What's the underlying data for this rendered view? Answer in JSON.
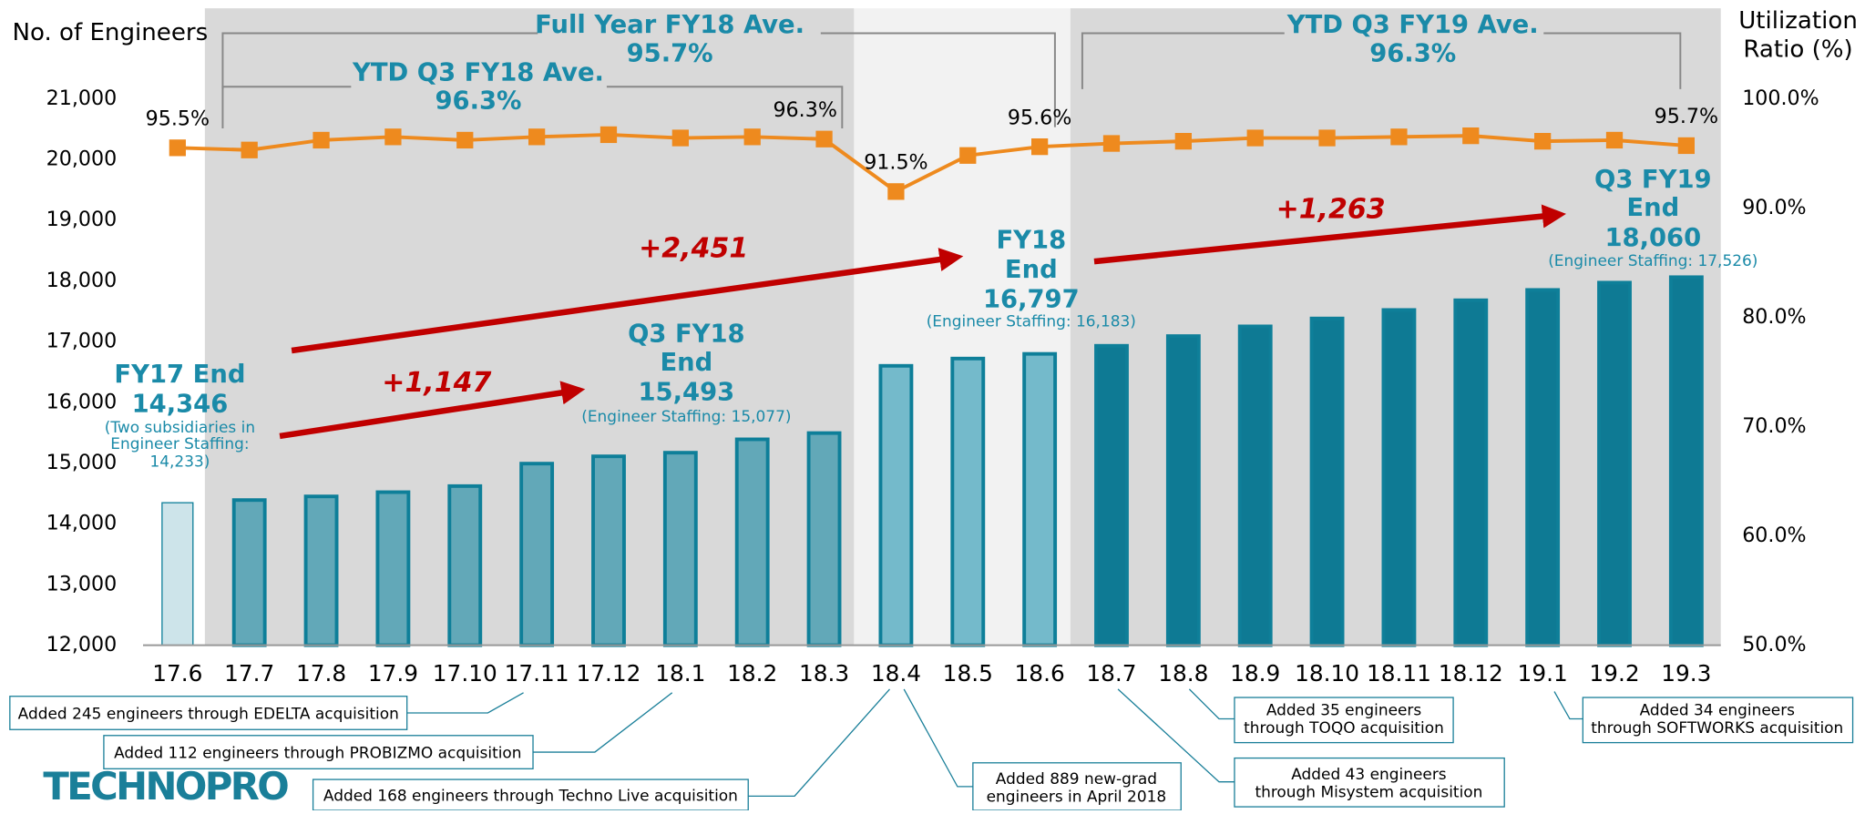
{
  "chart_data": {
    "type": "bar",
    "y_label": "No. of Engineers",
    "y2_label": [
      "Utilization",
      "Ratio (%)"
    ],
    "categories": [
      "17.6",
      "17.7",
      "17.8",
      "17.9",
      "17.10",
      "17.11",
      "17.12",
      "18.1",
      "18.2",
      "18.3",
      "18.4",
      "18.5",
      "18.6",
      "18.7",
      "18.8",
      "18.9",
      "18.10",
      "18.11",
      "18.12",
      "19.1",
      "19.2",
      "19.3"
    ],
    "series": [
      {
        "type": "bar",
        "values": [
          14346,
          14390,
          14450,
          14520,
          14620,
          14990,
          15110,
          15170,
          15390,
          15493,
          16600,
          16720,
          16797,
          16930,
          17090,
          17250,
          17380,
          17520,
          17680,
          17850,
          17970,
          18060
        ],
        "colors": [
          "#cde4ea",
          "#62a8b8",
          "#62a8b8",
          "#62a8b8",
          "#62a8b8",
          "#62a8b8",
          "#62a8b8",
          "#62a8b8",
          "#62a8b8",
          "#62a8b8",
          "#74bacb",
          "#74bacb",
          "#74bacb",
          "#0e7a94",
          "#0e7a94",
          "#0e7a94",
          "#0e7a94",
          "#0e7a94",
          "#0e7a94",
          "#0e7a94",
          "#0e7a94",
          "#0e7a94"
        ],
        "border_color": "#0e7f99"
      },
      {
        "type": "line",
        "axis": "y2",
        "color": "#ee8a1e",
        "values": [
          95.5,
          95.3,
          96.2,
          96.5,
          96.2,
          96.5,
          96.7,
          96.4,
          96.5,
          96.3,
          91.5,
          94.8,
          95.6,
          95.9,
          96.1,
          96.4,
          96.4,
          96.5,
          96.6,
          96.1,
          96.2,
          95.7
        ],
        "value_labels": [
          "95.5%",
          null,
          null,
          null,
          null,
          null,
          null,
          null,
          null,
          "96.3%",
          "91.5%",
          null,
          "95.6%",
          null,
          null,
          null,
          null,
          null,
          null,
          null,
          null,
          "95.7%"
        ]
      }
    ],
    "ylim": [
      12000,
      21000
    ],
    "yticks": [
      {
        "value": 12000,
        "label": "12,000"
      },
      {
        "value": 13000,
        "label": "13,000"
      },
      {
        "value": 14000,
        "label": "14,000"
      },
      {
        "value": 15000,
        "label": "15,000"
      },
      {
        "value": 16000,
        "label": "16,000"
      },
      {
        "value": 17000,
        "label": "17,000"
      },
      {
        "value": 18000,
        "label": "18,000"
      },
      {
        "value": 19000,
        "label": "19,000"
      },
      {
        "value": 20000,
        "label": "20,000"
      },
      {
        "value": 21000,
        "label": "21,000"
      }
    ],
    "y2lim": [
      50,
      100
    ],
    "y2ticks": [
      {
        "value": 50,
        "label": "50.0%"
      },
      {
        "value": 60,
        "label": "60.0%"
      },
      {
        "value": 70,
        "label": "70.0%"
      },
      {
        "value": 80,
        "label": "80.0%"
      },
      {
        "value": 90,
        "label": "90.0%"
      },
      {
        "value": 100,
        "label": "100.0%"
      }
    ],
    "averages": [
      {
        "label": "Full Year FY18 Ave.",
        "value": "95.7%"
      },
      {
        "label": "YTD Q3 FY18 Ave.",
        "value": "96.3%"
      },
      {
        "label": "YTD Q3 FY19 Ave.",
        "value": "96.3%"
      }
    ],
    "milestones": [
      {
        "lines": [
          "FY17 End",
          "14,346"
        ],
        "note": [
          "(Two subsidiaries in",
          "Engineer Staffing:",
          "14,233)"
        ]
      },
      {
        "lines": [
          "Q3 FY18",
          "End",
          "15,493"
        ],
        "note": [
          "(Engineer Staffing: 15,077)"
        ]
      },
      {
        "lines": [
          "FY18",
          "End",
          "16,797"
        ],
        "note": [
          "(Engineer Staffing: 16,183)"
        ]
      },
      {
        "lines": [
          "Q3 FY19",
          "End",
          "18,060"
        ],
        "note": [
          "(Engineer Staffing: 17,526)"
        ]
      }
    ],
    "growth": [
      "+1,147",
      "+2,451",
      "+1,263"
    ],
    "callouts": [
      [
        "Added 245 engineers through EDELTA acquisition"
      ],
      [
        "Added 112 engineers through PROBIZMO acquisition"
      ],
      [
        "Added 168 engineers through Techno Live acquisition"
      ],
      [
        "Added 889 new-grad",
        "engineers in April 2018"
      ],
      [
        "Added 35 engineers",
        "through TOQO acquisition"
      ],
      [
        "Added 43 engineers",
        "through Misystem acquisition"
      ],
      [
        "Added 34 engineers",
        "through SOFTWORKS acquisition"
      ]
    ],
    "logo": "TECHNOPRO"
  }
}
